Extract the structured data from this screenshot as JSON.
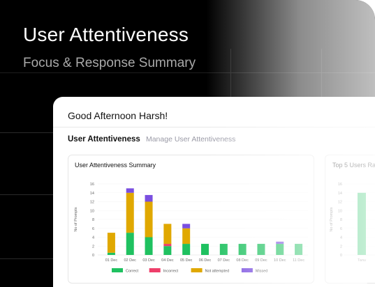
{
  "hero": {
    "title": "User Attentiveness",
    "subtitle": "Focus & Response Summary"
  },
  "card": {
    "greeting": "Good Afternoon Harsh!",
    "tabs": [
      {
        "label": "User Attentiveness"
      },
      {
        "label": "Manage User Attentiveness"
      }
    ],
    "panels": [
      {
        "title": "User Attentiveness Summary"
      },
      {
        "title": "Top 5 Users Ra"
      }
    ]
  },
  "colors": {
    "Correct": "#1fc160",
    "Incorrect": "#ee3e6a",
    "Not attempted": "#e0a800",
    "Missed": "#7a4fe0"
  },
  "chart_data": [
    {
      "type": "bar",
      "stacked": true,
      "title": "User Attentiveness Summary",
      "ylabel": "No of Prompts",
      "ylim": [
        0,
        16
      ],
      "yticks": [
        0,
        2,
        4,
        6,
        8,
        10,
        12,
        14,
        16
      ],
      "categories": [
        "01 Dec",
        "02 Dec",
        "03 Dec",
        "04 Dec",
        "05 Dec",
        "06 Dec",
        "07 Dec",
        "08 Dec",
        "09 Dec",
        "10 Dec",
        "11 Dec"
      ],
      "series": [
        {
          "name": "Correct",
          "values": [
            0.5,
            5,
            4,
            2,
            2.5,
            2.5,
            2.5,
            2.5,
            2.5,
            2.5,
            2.5
          ]
        },
        {
          "name": "Incorrect",
          "values": [
            0,
            0,
            0,
            0.5,
            0,
            0,
            0,
            0,
            0,
            0,
            0
          ]
        },
        {
          "name": "Not attempted",
          "values": [
            4.5,
            9,
            8,
            4.5,
            3.5,
            0,
            0,
            0,
            0,
            0,
            0
          ]
        },
        {
          "name": "Missed",
          "values": [
            0,
            1,
            1.5,
            0,
            1,
            0,
            0,
            0,
            0,
            0.5,
            0
          ]
        }
      ],
      "legend": "bottom"
    },
    {
      "type": "bar",
      "title": "Top 5 Users Ra",
      "ylabel": "No of Prompts",
      "ylim": [
        0,
        16
      ],
      "yticks": [
        0,
        2,
        4,
        6,
        8,
        10,
        12,
        14,
        16
      ],
      "categories": [
        "Tanu"
      ],
      "series": [
        {
          "values": [
            14
          ]
        }
      ]
    }
  ]
}
